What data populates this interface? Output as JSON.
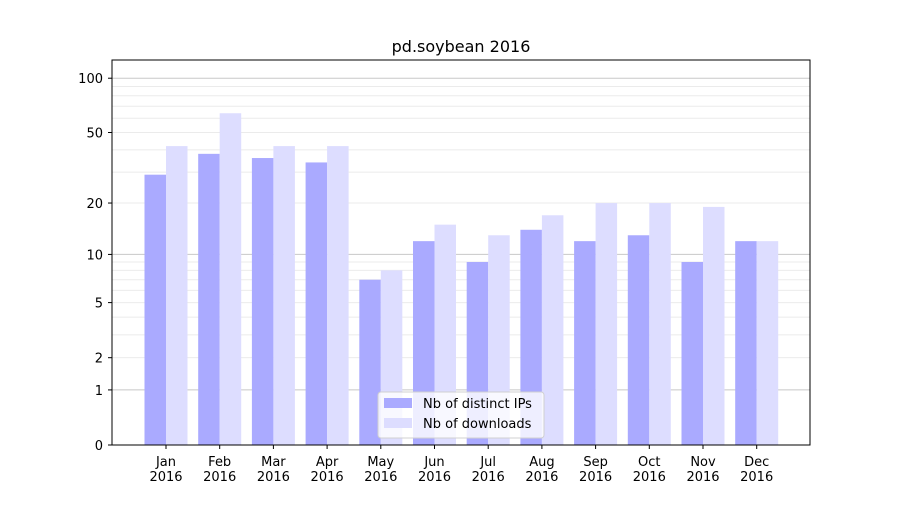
{
  "chart_data": {
    "type": "bar",
    "title": "pd.soybean 2016",
    "xlabel": "",
    "ylabel": "",
    "y_scale": "log(1+y)",
    "ylim": [
      0,
      120
    ],
    "yticks": [
      0,
      1,
      2,
      5,
      10,
      20,
      50,
      100
    ],
    "grid": true,
    "legend_position": "bottom-center",
    "categories": [
      "Jan\n2016",
      "Feb\n2016",
      "Mar\n2016",
      "Apr\n2016",
      "May\n2016",
      "Jun\n2016",
      "Jul\n2016",
      "Aug\n2016",
      "Sep\n2016",
      "Oct\n2016",
      "Nov\n2016",
      "Dec\n2016"
    ],
    "series": [
      {
        "name": "Nb of distinct IPs",
        "color": "#aaaaff",
        "values": [
          29,
          38,
          36,
          34,
          7,
          12,
          9,
          14,
          12,
          13,
          9,
          12
        ]
      },
      {
        "name": "Nb of downloads",
        "color": "#ddddff",
        "values": [
          42,
          64,
          42,
          42,
          8,
          15,
          13,
          17,
          20,
          20,
          19,
          12
        ]
      }
    ]
  }
}
